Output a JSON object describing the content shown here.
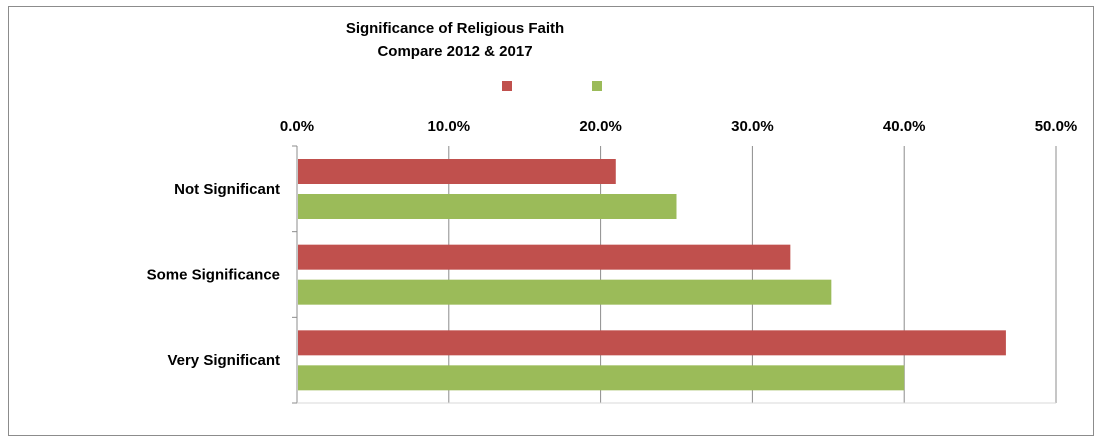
{
  "chart_data": {
    "type": "bar",
    "orientation": "horizontal",
    "title_line1": "Significance of Religious Faith",
    "title_line2": "Compare  2012 & 2017",
    "categories": [
      "Not Significant",
      "Some Significance",
      "Very Significant"
    ],
    "series": [
      {
        "color": "#c0504d",
        "values": [
          21.0,
          32.5,
          46.7
        ]
      },
      {
        "color": "#9bbb59",
        "values": [
          25.0,
          35.2,
          40.0
        ]
      }
    ],
    "x_ticks": [
      "0.0%",
      "10.0%",
      "20.0%",
      "30.0%",
      "40.0%",
      "50.0%"
    ],
    "xlim": [
      0,
      50
    ],
    "x_axis_position": "top",
    "grid": true,
    "legend_position": "top"
  }
}
